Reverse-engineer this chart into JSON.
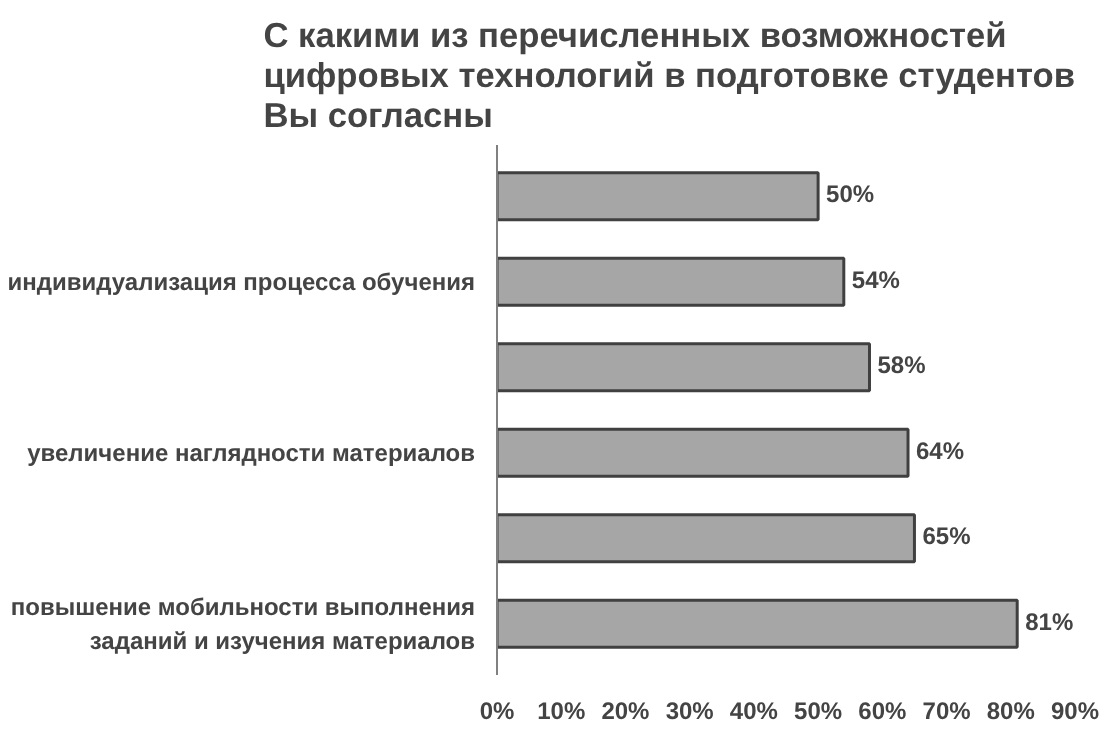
{
  "chart_data": {
    "type": "bar",
    "orientation": "horizontal",
    "title": "С какими из перечисленных возможностей\nцифровых технологий в подготовке студентов\nВы согласны",
    "categories": [
      null,
      "индивидуализация процесса обучения",
      null,
      "увеличение наглядности материалов",
      null,
      "повышение мобильности выполнения\nзаданий и изучения материалов"
    ],
    "values": [
      50,
      54,
      58,
      64,
      65,
      81
    ],
    "value_labels": [
      "50%",
      "54%",
      "58%",
      "64%",
      "65%",
      "81%"
    ],
    "color": "#a6a6a6",
    "xlim": [
      0,
      90
    ],
    "xticks": [
      {
        "value": 0,
        "label": "0%"
      },
      {
        "value": 10,
        "label": "10%"
      },
      {
        "value": 20,
        "label": "20%"
      },
      {
        "value": 30,
        "label": "30%"
      },
      {
        "value": 40,
        "label": "40%"
      },
      {
        "value": 50,
        "label": "50%"
      },
      {
        "value": 60,
        "label": "60%"
      },
      {
        "value": 70,
        "label": "70%"
      },
      {
        "value": 80,
        "label": "80%"
      },
      {
        "value": 90,
        "label": "90%"
      }
    ],
    "grid": false
  }
}
